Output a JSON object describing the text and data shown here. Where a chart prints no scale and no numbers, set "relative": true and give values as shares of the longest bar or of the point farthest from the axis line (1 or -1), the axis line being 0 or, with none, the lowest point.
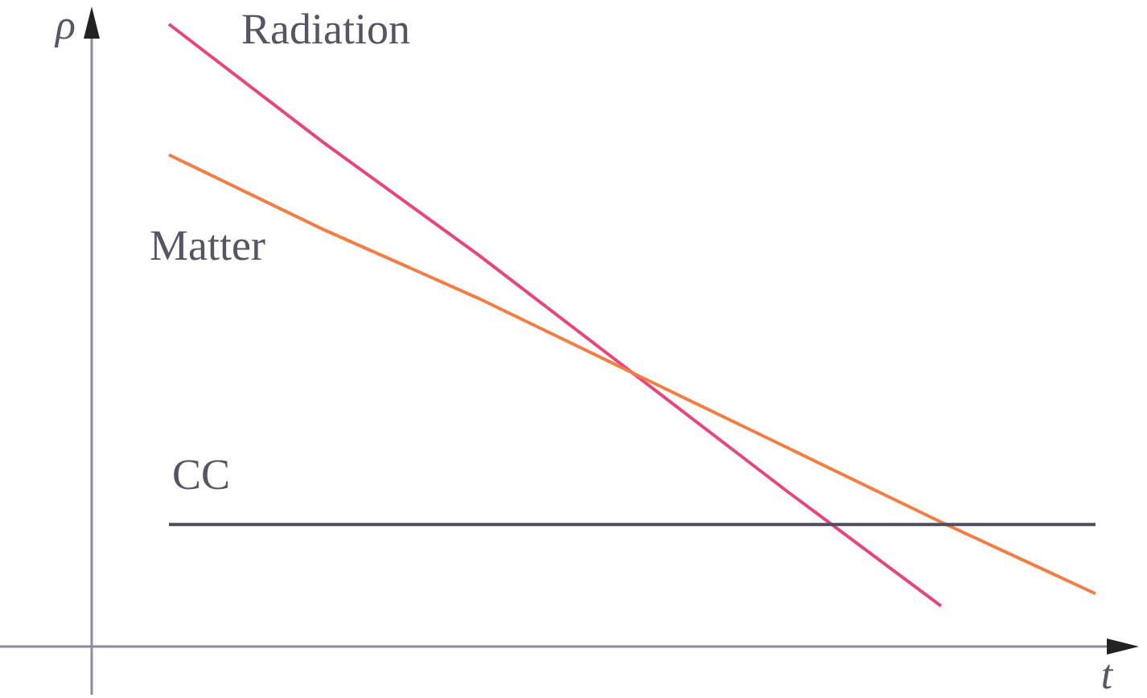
{
  "chart_data": {
    "type": "line",
    "xlabel": "t",
    "ylabel": "ρ",
    "relative": true,
    "categories": [
      null,
      null,
      null,
      null,
      null,
      null,
      null
    ],
    "legend": false,
    "marker": "none",
    "line_style": "solid",
    "series": [
      {
        "name": "Radiation",
        "color": "#e8457a",
        "values": [
          1,
          0.81,
          0.63,
          0.44,
          0.25,
          0.065,
          null
        ]
      },
      {
        "name": "Matter",
        "color": "#f27d45",
        "values": [
          0.79,
          0.67,
          0.56,
          0.44,
          0.32,
          0.2,
          0.085
        ]
      },
      {
        "name": "CC",
        "color": "#4d4d5f",
        "values": [
          0.196,
          0.196,
          0.196,
          0.196,
          0.196,
          0.196,
          0.196
        ]
      }
    ]
  }
}
